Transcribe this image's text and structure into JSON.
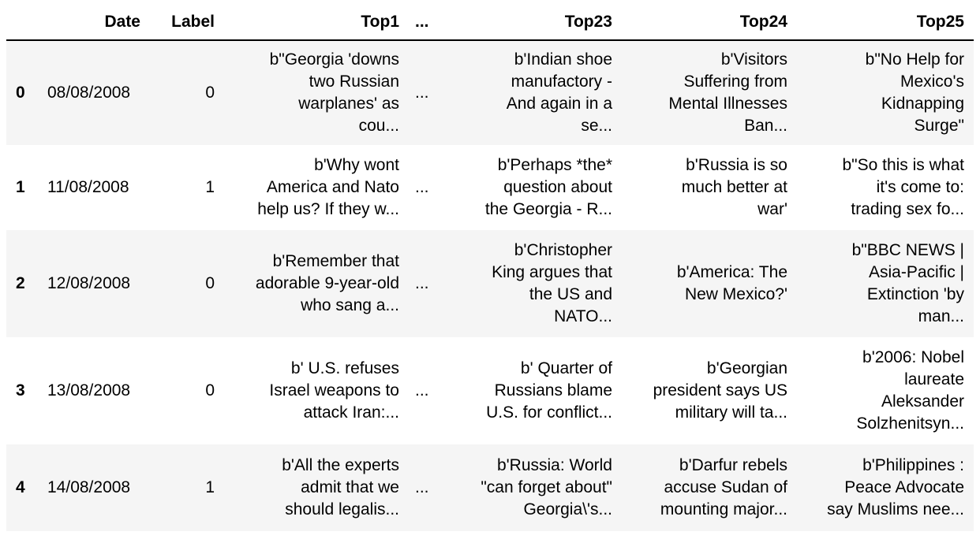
{
  "table": {
    "columns": {
      "index": "",
      "date": "Date",
      "label": "Label",
      "top1": "Top1",
      "ellipsis": "...",
      "top23": "Top23",
      "top24": "Top24",
      "top25": "Top25"
    },
    "rows": [
      {
        "index": "0",
        "date": "08/08/2008",
        "label": "0",
        "top1": "b\"Georgia 'downs\ntwo Russian\nwarplanes' as\ncou...",
        "ellipsis": "...",
        "top23": "b'Indian shoe\nmanufactory -\nAnd again in a\nse...",
        "top24": "b'Visitors\nSuffering from\nMental Illnesses\nBan...",
        "top25": "b\"No Help for\nMexico's\nKidnapping\nSurge\""
      },
      {
        "index": "1",
        "date": "11/08/2008",
        "label": "1",
        "top1": "b'Why wont\nAmerica and Nato\nhelp us? If they w...",
        "ellipsis": "...",
        "top23": "b'Perhaps *the*\nquestion about\nthe Georgia - R...",
        "top24": "b'Russia is so\nmuch better at\nwar'",
        "top25": "b\"So this is what\nit's come to:\ntrading sex fo..."
      },
      {
        "index": "2",
        "date": "12/08/2008",
        "label": "0",
        "top1": "b'Remember that\nadorable 9-year-old\nwho sang a...",
        "ellipsis": "...",
        "top23": "b'Christopher\nKing argues that\nthe US and\nNATO...",
        "top24": "b'America: The\nNew Mexico?'",
        "top25": "b\"BBC NEWS |\nAsia-Pacific |\nExtinction 'by\nman..."
      },
      {
        "index": "3",
        "date": "13/08/2008",
        "label": "0",
        "top1": "b' U.S. refuses\nIsrael weapons to\nattack Iran:...",
        "ellipsis": "...",
        "top23": "b' Quarter of\nRussians blame\nU.S. for conflict...",
        "top24": "b'Georgian\npresident says US\nmilitary will ta...",
        "top25": "b'2006: Nobel\nlaureate\nAleksander\nSolzhenitsyn..."
      },
      {
        "index": "4",
        "date": "14/08/2008",
        "label": "1",
        "top1": "b'All the experts\nadmit that we\nshould legalis...",
        "ellipsis": "...",
        "top23": "b'Russia: World\n\"can forget about\"\nGeorgia\\'s...",
        "top24": "b'Darfur rebels\naccuse Sudan of\nmounting major...",
        "top25": "b'Philippines :\nPeace Advocate\nsay Muslims nee..."
      }
    ]
  }
}
